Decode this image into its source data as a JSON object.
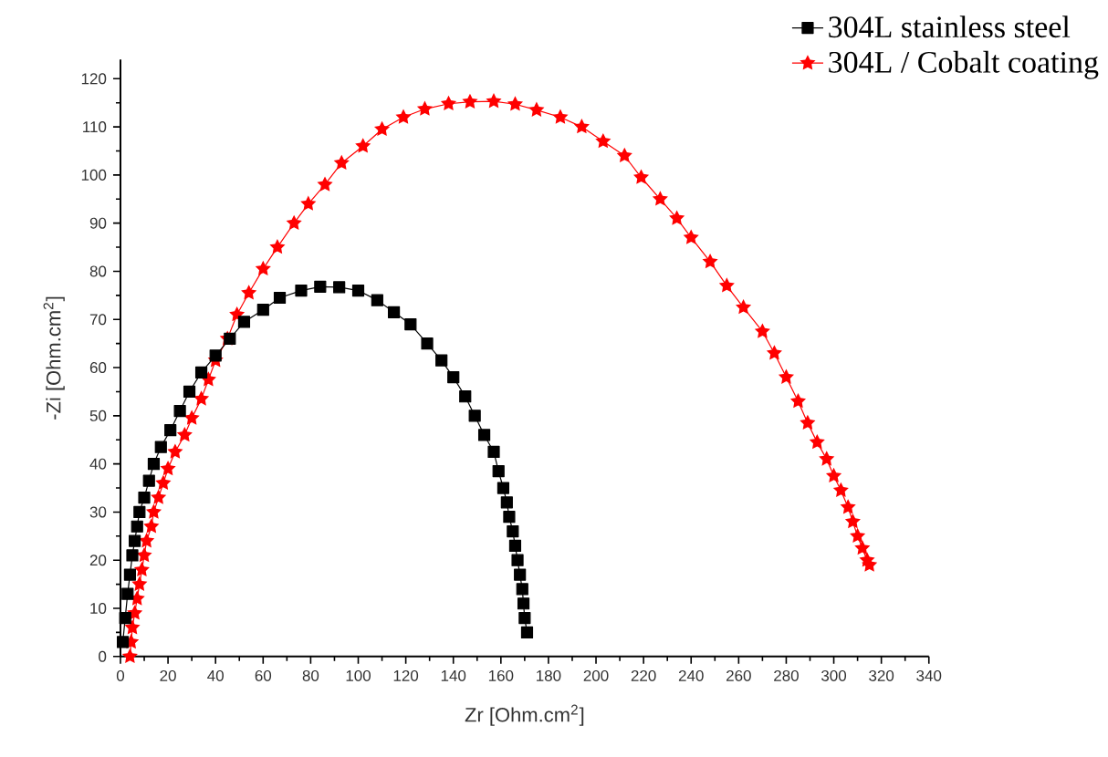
{
  "chart_data": {
    "type": "line",
    "xlabel": "Zr [Ohm.cm$^{2}$]",
    "ylabel": "-Zi [Ohm.cm$^{2}$]",
    "legend": "top right",
    "xlim": [
      0,
      340
    ],
    "ylim": [
      0,
      124
    ],
    "xticks": [
      0,
      20,
      40,
      60,
      80,
      100,
      120,
      140,
      160,
      180,
      200,
      220,
      240,
      260,
      280,
      300,
      320,
      340
    ],
    "yticks": [
      0,
      10,
      20,
      30,
      40,
      50,
      60,
      70,
      80,
      90,
      100,
      110,
      120
    ],
    "series": [
      {
        "name": "304L stainless steel",
        "color": "#000000",
        "marker": "square",
        "x": [
          1,
          2,
          3,
          4,
          5,
          6,
          7,
          8,
          10,
          12,
          14,
          17,
          21,
          25,
          29,
          34,
          40,
          46,
          52,
          60,
          67,
          76,
          84,
          92,
          100,
          108,
          115,
          122,
          129,
          135,
          140,
          145,
          149,
          153,
          157,
          159,
          161,
          162.5,
          163.5,
          165,
          166,
          167,
          168,
          169,
          169.5,
          170,
          171
        ],
        "values": [
          3,
          8,
          13,
          17,
          21,
          24,
          27,
          30,
          33,
          36.5,
          40,
          43.5,
          47,
          51,
          55,
          59,
          62.5,
          66,
          69.5,
          72,
          74.5,
          76,
          76.8,
          76.7,
          76,
          74,
          71.5,
          69,
          65,
          61.5,
          58,
          54,
          50,
          46,
          42.5,
          38.5,
          35,
          32,
          29,
          26,
          23,
          20,
          17,
          14,
          11,
          8,
          5
        ]
      },
      {
        "name": "304L / Cobalt coating",
        "color": "#ff0000",
        "marker": "star",
        "x": [
          4,
          4.5,
          5,
          6,
          7,
          8,
          9,
          10,
          11,
          13,
          14,
          16,
          18,
          20,
          23,
          27,
          30,
          34,
          37,
          40,
          45,
          49,
          54,
          60,
          66,
          73,
          79,
          86,
          93,
          102,
          110,
          119,
          128,
          138,
          147,
          157,
          166,
          175,
          185,
          194,
          203,
          212,
          219,
          227,
          234,
          240,
          248,
          255,
          262,
          270,
          275,
          280,
          285,
          289,
          293,
          297,
          300,
          303,
          306,
          308,
          310,
          312,
          314,
          315
        ],
        "values": [
          0,
          3,
          6,
          9,
          12,
          15,
          18,
          21,
          24,
          27,
          30,
          33,
          36,
          39,
          42.5,
          46,
          49.5,
          53.5,
          57.5,
          61.5,
          66,
          71,
          75.5,
          80.5,
          85,
          90,
          94,
          98,
          102.5,
          106,
          109.5,
          112,
          113.7,
          114.8,
          115.2,
          115.3,
          114.7,
          113.5,
          112,
          110,
          107,
          104,
          99.5,
          95,
          91,
          87,
          82,
          77,
          72.5,
          67.5,
          63,
          58,
          53,
          48.5,
          44.5,
          41,
          37.5,
          34.5,
          31,
          28,
          25,
          22.5,
          20,
          19
        ]
      }
    ]
  }
}
